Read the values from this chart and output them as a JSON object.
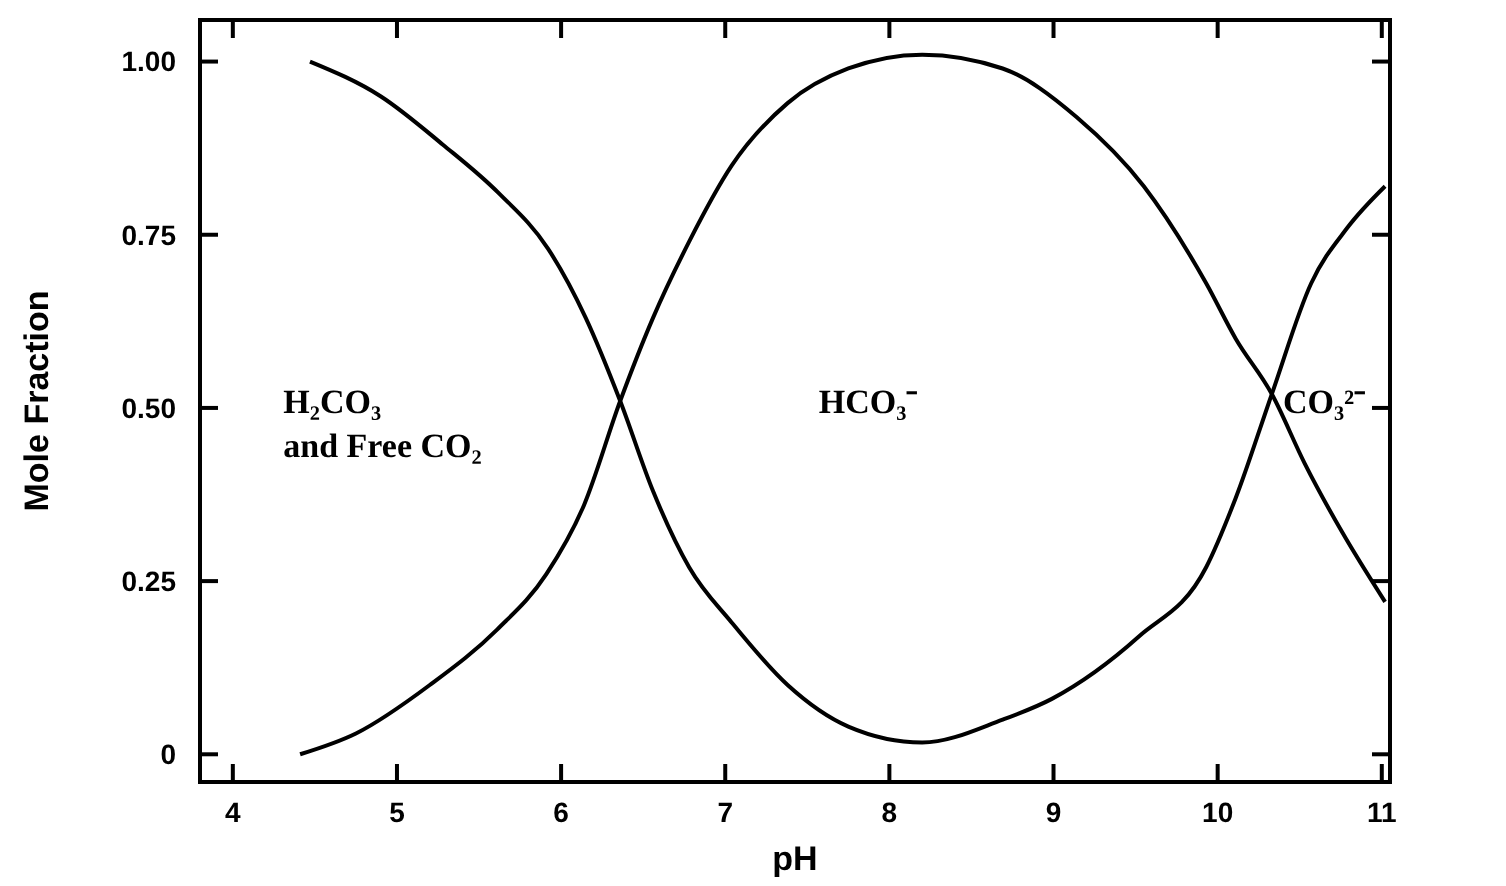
{
  "chart_data": {
    "type": "line",
    "xlabel": "pH",
    "ylabel": "Mole Fraction",
    "xlim": [
      3.8,
      11.05
    ],
    "xticks": [
      4,
      5,
      6,
      7,
      8,
      9,
      10,
      11
    ],
    "ylim": [
      -0.04,
      1.06
    ],
    "yticks": [
      {
        "value": 0,
        "label": "0"
      },
      {
        "value": 0.25,
        "label": "0.25"
      },
      {
        "value": 0.5,
        "label": "0.50"
      },
      {
        "value": 0.75,
        "label": "0.75"
      },
      {
        "value": 1,
        "label": "1.00"
      }
    ],
    "grid": false,
    "marker": "none",
    "line_style": "solid",
    "series": [
      {
        "color": "#000000",
        "x": [
          4.47,
          4.9,
          5.28,
          5.62,
          5.92,
          6.15,
          6.36,
          6.56,
          6.78,
          7.04,
          7.38,
          7.75,
          8.2,
          8.69,
          8.99,
          9.52,
          9.93,
          10.11,
          10.33,
          10.57,
          10.79,
          11.02
        ],
        "values": [
          1.0,
          0.95,
          0.88,
          0.81,
          0.73,
          0.63,
          0.51,
          0.38,
          0.27,
          0.19,
          0.1,
          0.04,
          0.017,
          0.05,
          0.08,
          0.17,
          0.27,
          0.37,
          0.52,
          0.68,
          0.76,
          0.82
        ]
      },
      {
        "color": "#000000",
        "x": [
          4.41,
          4.75,
          5.2,
          5.61,
          5.91,
          6.14,
          6.36,
          6.56,
          6.78,
          7.04,
          7.38,
          7.75,
          8.2,
          8.69,
          9.14,
          9.55,
          9.93,
          10.11,
          10.33,
          10.53,
          10.76,
          11.02
        ],
        "values": [
          0.0,
          0.03,
          0.1,
          0.18,
          0.26,
          0.36,
          0.51,
          0.63,
          0.74,
          0.85,
          0.94,
          0.99,
          1.01,
          0.99,
          0.92,
          0.82,
          0.68,
          0.6,
          0.52,
          0.42,
          0.32,
          0.22
        ]
      }
    ],
    "annotations": [
      "H₂CO₃\nand Free CO₂",
      "HCO₃⁻",
      "CO₃²⁻"
    ]
  }
}
